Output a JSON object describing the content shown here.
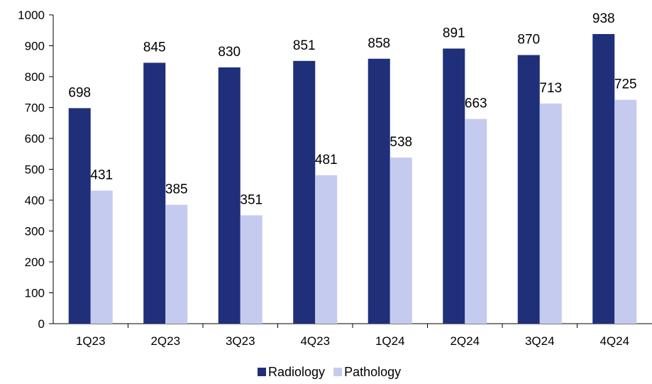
{
  "chart_data": {
    "type": "bar",
    "title": "",
    "xlabel": "",
    "ylabel": "",
    "categories": [
      "1Q23",
      "2Q23",
      "3Q23",
      "4Q23",
      "1Q24",
      "2Q24",
      "3Q24",
      "4Q24"
    ],
    "series": [
      {
        "name": "Radiology",
        "values": [
          698,
          845,
          830,
          851,
          858,
          891,
          870,
          938
        ],
        "color": "#1f2f7a"
      },
      {
        "name": "Pathology",
        "values": [
          431,
          385,
          351,
          481,
          538,
          663,
          713,
          725
        ],
        "color": "#c5cbef"
      }
    ],
    "ylim": [
      0,
      1000
    ],
    "yticks": [
      0,
      100,
      200,
      300,
      400,
      500,
      600,
      700,
      800,
      900,
      1000
    ],
    "grid": false,
    "legend_position": "bottom-center",
    "data_labels": true
  }
}
